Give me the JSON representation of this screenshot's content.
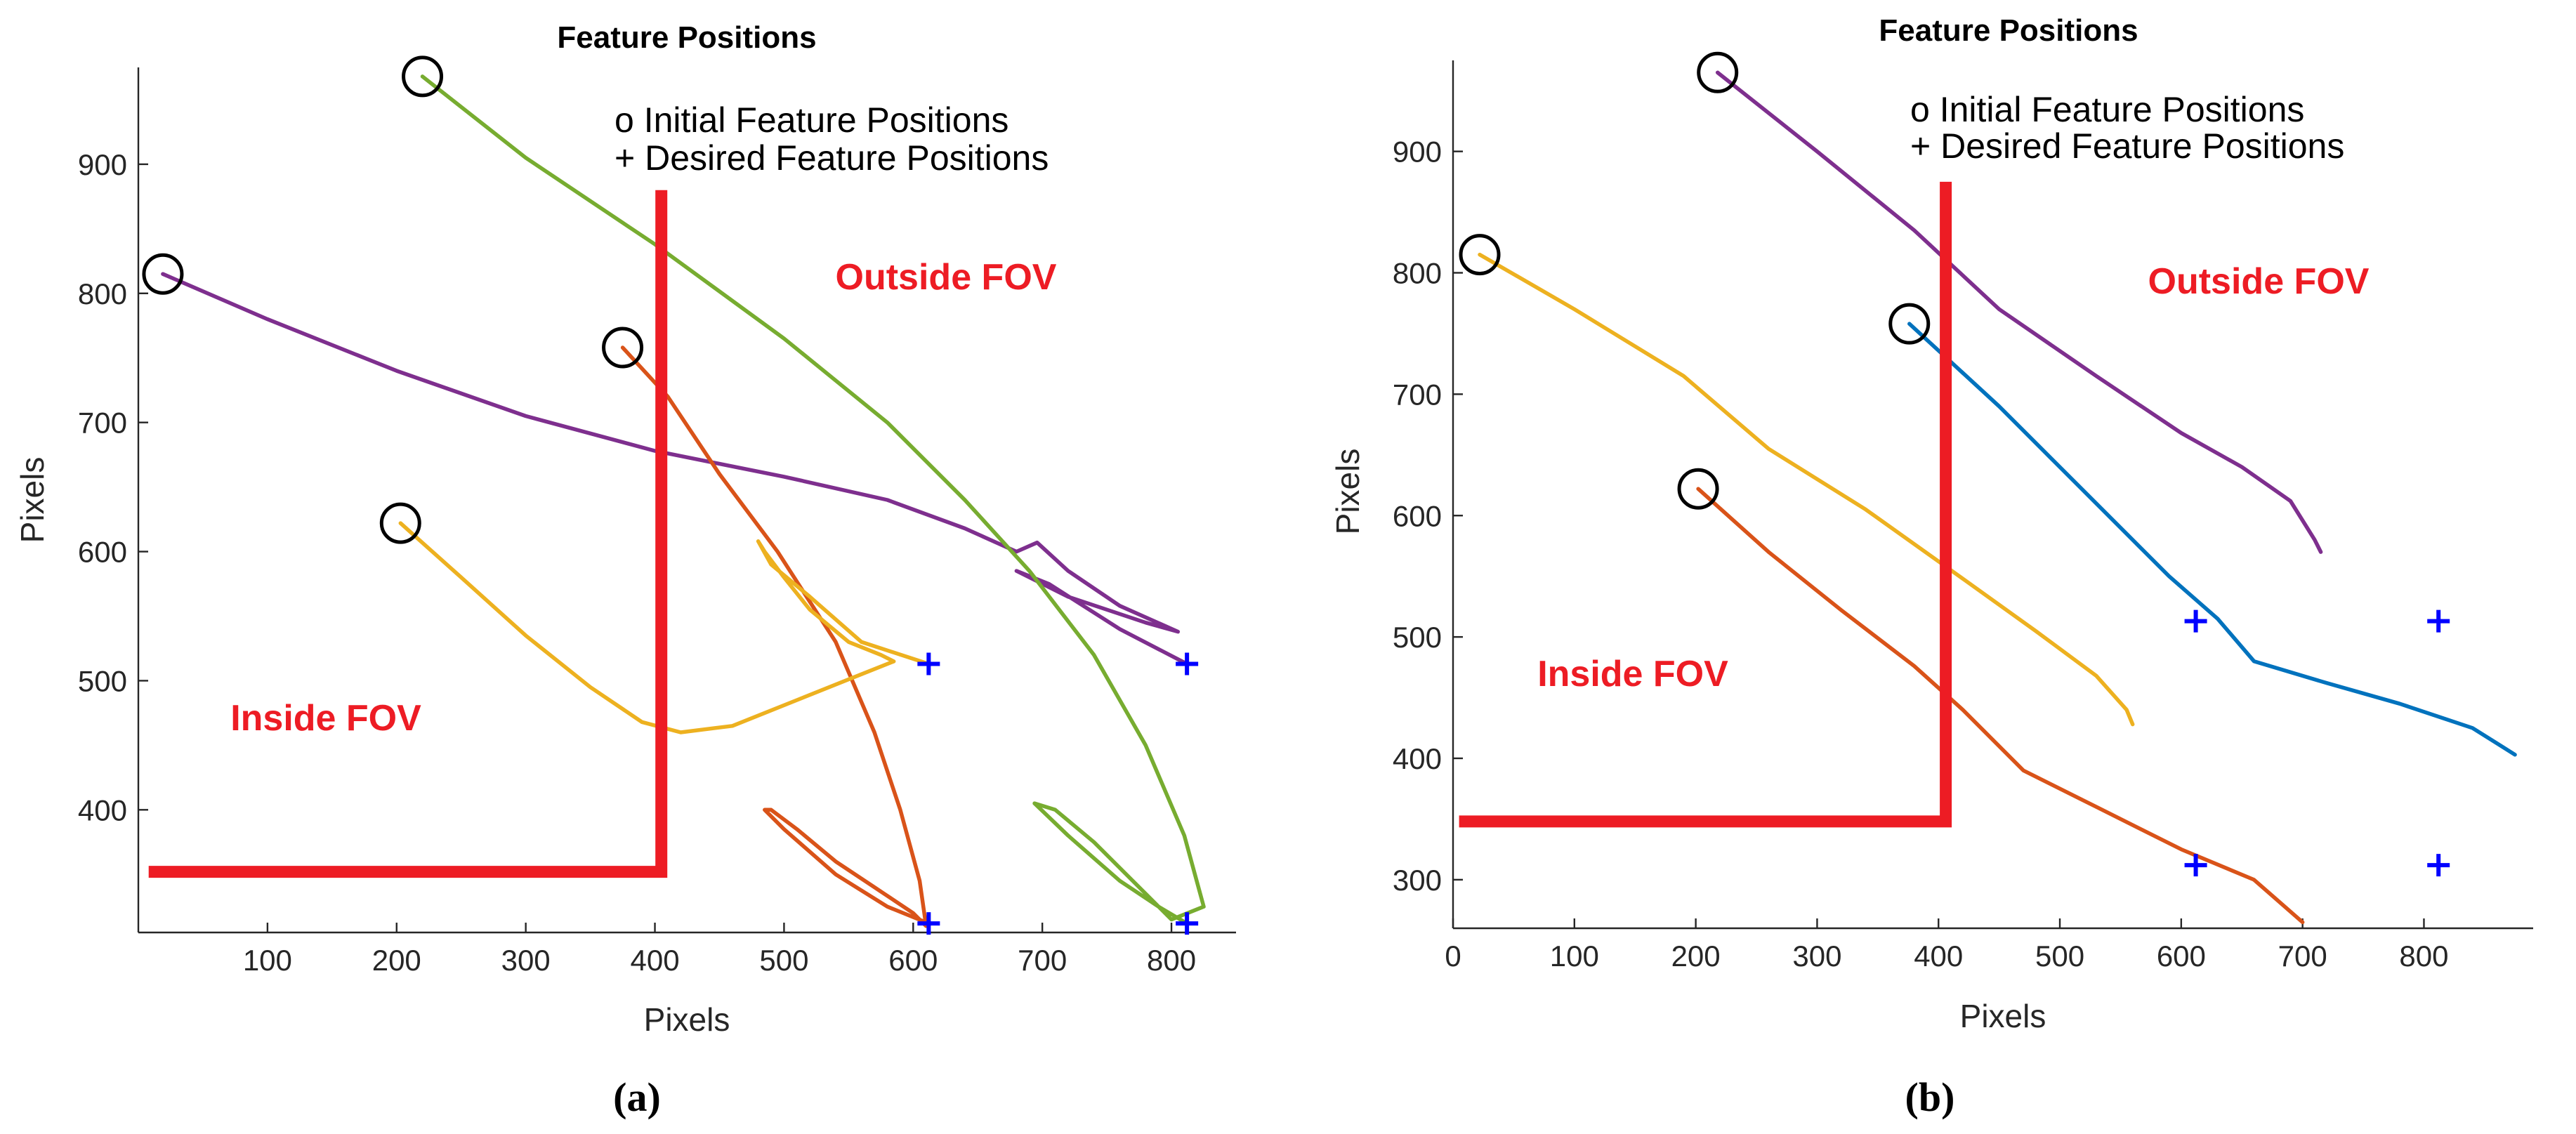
{
  "chart_data": [
    {
      "type": "line",
      "panel": "a",
      "caption": "(a)",
      "title": "Feature Positions",
      "xlabel": "Pixels",
      "ylabel": "Pixels",
      "xlim": [
        0,
        850
      ],
      "ylim": [
        305,
        975
      ],
      "xticks": [
        100,
        200,
        300,
        400,
        500,
        600,
        700,
        800
      ],
      "yticks": [
        400,
        500,
        600,
        700,
        800,
        900
      ],
      "legend": {
        "initial": "o Initial Feature Positions",
        "desired": "+ Desired Feature Positions"
      },
      "regions": {
        "inside": "Inside FOV",
        "outside": "Outside FOV"
      },
      "fov_boundary": [
        [
          8,
          352
        ],
        [
          405,
          352
        ],
        [
          405,
          880
        ]
      ],
      "initial_positions": [
        [
          19,
          815
        ],
        [
          220,
          968
        ],
        [
          375,
          758
        ],
        [
          203,
          622
        ]
      ],
      "desired_positions": [
        [
          612,
          513
        ],
        [
          812,
          513
        ],
        [
          612,
          312
        ],
        [
          812,
          312
        ]
      ],
      "series": [
        {
          "name": "purple",
          "color": "#7e2f8e",
          "points": [
            [
              19,
              815
            ],
            [
              100,
              780
            ],
            [
              200,
              740
            ],
            [
              300,
              705
            ],
            [
              400,
              678
            ],
            [
              500,
              658
            ],
            [
              580,
              640
            ],
            [
              640,
              618
            ],
            [
              680,
              600
            ],
            [
              696,
              607
            ],
            [
              720,
              585
            ],
            [
              760,
              558
            ],
            [
              805,
              538
            ],
            [
              780,
              545
            ],
            [
              720,
              565
            ],
            [
              680,
              585
            ],
            [
              705,
              575
            ],
            [
              760,
              540
            ],
            [
              812,
              513
            ]
          ]
        },
        {
          "name": "green",
          "color": "#77ac30",
          "points": [
            [
              220,
              968
            ],
            [
              300,
              905
            ],
            [
              400,
              838
            ],
            [
              500,
              765
            ],
            [
              580,
              700
            ],
            [
              640,
              640
            ],
            [
              690,
              585
            ],
            [
              740,
              520
            ],
            [
              780,
              450
            ],
            [
              810,
              380
            ],
            [
              825,
              325
            ],
            [
              800,
              315
            ],
            [
              770,
              345
            ],
            [
              740,
              375
            ],
            [
              710,
              400
            ],
            [
              694,
              405
            ],
            [
              720,
              380
            ],
            [
              760,
              345
            ],
            [
              790,
              325
            ],
            [
              812,
              312
            ]
          ]
        },
        {
          "name": "red",
          "color": "#d95319",
          "points": [
            [
              375,
              758
            ],
            [
              410,
              720
            ],
            [
              450,
              660
            ],
            [
              495,
              600
            ],
            [
              540,
              530
            ],
            [
              570,
              460
            ],
            [
              590,
              400
            ],
            [
              605,
              345
            ],
            [
              610,
              310
            ],
            [
              600,
              320
            ],
            [
              570,
              340
            ],
            [
              540,
              360
            ],
            [
              510,
              385
            ],
            [
              490,
              400
            ],
            [
              485,
              400
            ],
            [
              500,
              385
            ],
            [
              540,
              350
            ],
            [
              580,
              325
            ],
            [
              612,
              312
            ]
          ]
        },
        {
          "name": "yellow",
          "color": "#edb120",
          "points": [
            [
              203,
              622
            ],
            [
              250,
              580
            ],
            [
              300,
              535
            ],
            [
              350,
              495
            ],
            [
              390,
              468
            ],
            [
              420,
              460
            ],
            [
              460,
              465
            ],
            [
              510,
              485
            ],
            [
              560,
              505
            ],
            [
              585,
              515
            ],
            [
              575,
              520
            ],
            [
              550,
              530
            ],
            [
              520,
              555
            ],
            [
              500,
              580
            ],
            [
              485,
              600
            ],
            [
              480,
              608
            ],
            [
              490,
              590
            ],
            [
              520,
              565
            ],
            [
              560,
              530
            ],
            [
              612,
              513
            ]
          ]
        }
      ]
    },
    {
      "type": "line",
      "panel": "b",
      "caption": "(b)",
      "title": "Feature Positions",
      "xlabel": "Pixels",
      "ylabel": "Pixels",
      "xlim": [
        0,
        890
      ],
      "ylim": [
        260,
        975
      ],
      "xticks": [
        0,
        100,
        200,
        300,
        400,
        500,
        600,
        700,
        800
      ],
      "yticks": [
        300,
        400,
        500,
        600,
        700,
        800,
        900
      ],
      "legend": {
        "initial": "o Initial Feature Positions",
        "desired": "+ Desired Feature Positions"
      },
      "regions": {
        "inside": "Inside FOV",
        "outside": "Outside FOV"
      },
      "fov_boundary": [
        [
          5,
          348
        ],
        [
          406,
          348
        ],
        [
          406,
          875
        ]
      ],
      "initial_positions": [
        [
          22,
          815
        ],
        [
          218,
          965
        ],
        [
          376,
          758
        ],
        [
          202,
          622
        ]
      ],
      "desired_positions": [
        [
          612,
          513
        ],
        [
          812,
          513
        ],
        [
          612,
          312
        ],
        [
          812,
          312
        ]
      ],
      "series": [
        {
          "name": "purple",
          "color": "#7e2f8e",
          "points": [
            [
              218,
              965
            ],
            [
              300,
              900
            ],
            [
              380,
              835
            ],
            [
              450,
              770
            ],
            [
              530,
              715
            ],
            [
              600,
              668
            ],
            [
              650,
              640
            ],
            [
              690,
              612
            ],
            [
              710,
              580
            ],
            [
              715,
              570
            ]
          ]
        },
        {
          "name": "yellow",
          "color": "#edb120",
          "points": [
            [
              22,
              815
            ],
            [
              100,
              770
            ],
            [
              190,
              715
            ],
            [
              260,
              655
            ],
            [
              340,
              605
            ],
            [
              420,
              548
            ],
            [
              480,
              505
            ],
            [
              530,
              468
            ],
            [
              555,
              440
            ],
            [
              560,
              428
            ]
          ]
        },
        {
          "name": "blue",
          "color": "#0072bd",
          "points": [
            [
              376,
              758
            ],
            [
              450,
              690
            ],
            [
              520,
              620
            ],
            [
              590,
              550
            ],
            [
              630,
              515
            ],
            [
              660,
              480
            ],
            [
              720,
              462
            ],
            [
              780,
              445
            ],
            [
              840,
              425
            ],
            [
              875,
              403
            ]
          ]
        },
        {
          "name": "red",
          "color": "#d95319",
          "points": [
            [
              202,
              622
            ],
            [
              260,
              570
            ],
            [
              320,
              522
            ],
            [
              380,
              476
            ],
            [
              420,
              440
            ],
            [
              470,
              390
            ],
            [
              530,
              360
            ],
            [
              600,
              325
            ],
            [
              660,
              300
            ],
            [
              700,
              265
            ]
          ]
        }
      ]
    }
  ]
}
